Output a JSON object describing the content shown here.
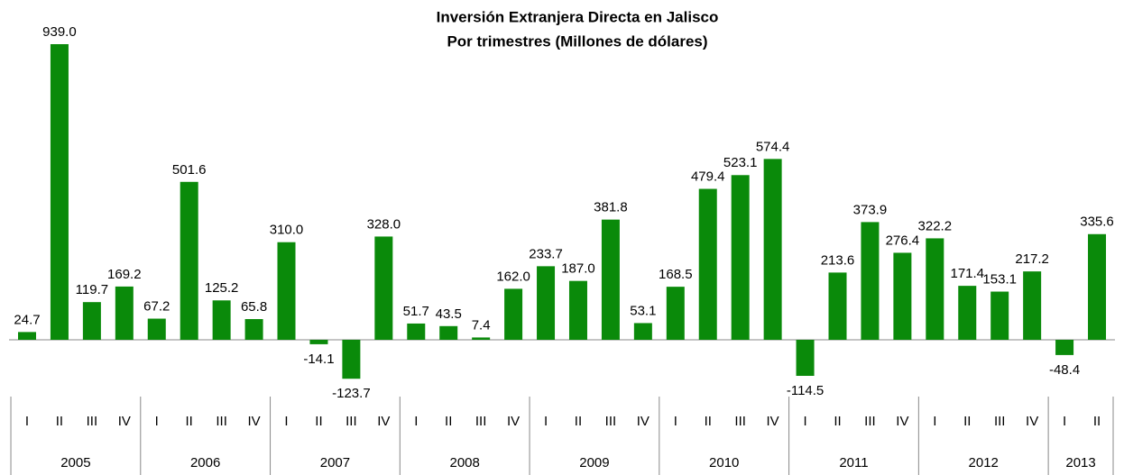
{
  "chart_data": {
    "type": "bar",
    "title": "Inversión Extranjera Directa en Jalisco",
    "subtitle": "Por trimestres (Millones de dólares)",
    "color": "#0a8a0a",
    "categories": [
      "I",
      "II",
      "III",
      "IV",
      "I",
      "II",
      "III",
      "IV",
      "I",
      "II",
      "III",
      "IV",
      "I",
      "II",
      "III",
      "IV",
      "I",
      "II",
      "III",
      "IV",
      "I",
      "II",
      "III",
      "IV",
      "I",
      "II",
      "III",
      "IV",
      "I",
      "II",
      "III",
      "IV",
      "I",
      "II"
    ],
    "years": [
      "2005",
      "2006",
      "2007",
      "2008",
      "2009",
      "2010",
      "2011",
      "2012",
      "2013"
    ],
    "values": [
      24.7,
      939.0,
      119.7,
      169.2,
      67.2,
      501.6,
      125.2,
      65.8,
      310.0,
      -14.1,
      -123.7,
      328.0,
      51.7,
      43.5,
      7.4,
      162.0,
      233.7,
      187.0,
      381.8,
      53.1,
      168.5,
      479.4,
      523.1,
      574.4,
      -114.5,
      213.6,
      373.9,
      276.4,
      322.2,
      171.4,
      153.1,
      217.2,
      -48.4,
      335.6
    ],
    "value_labels": [
      "24.7",
      "939.0",
      "119.7",
      "169.2",
      "67.2",
      "501.6",
      "125.2",
      "65.8",
      "310.0",
      "-14.1",
      "-123.7",
      "328.0",
      "51.7",
      "43.5",
      "7.4",
      "162.0",
      "233.7",
      "187.0",
      "381.8",
      "53.1",
      "168.5",
      "479.4",
      "523.1",
      "574.4",
      "-114.5",
      "213.6",
      "373.9",
      "276.4",
      "322.2",
      "171.4",
      "153.1",
      "217.2",
      "-48.4",
      "335.6"
    ]
  }
}
